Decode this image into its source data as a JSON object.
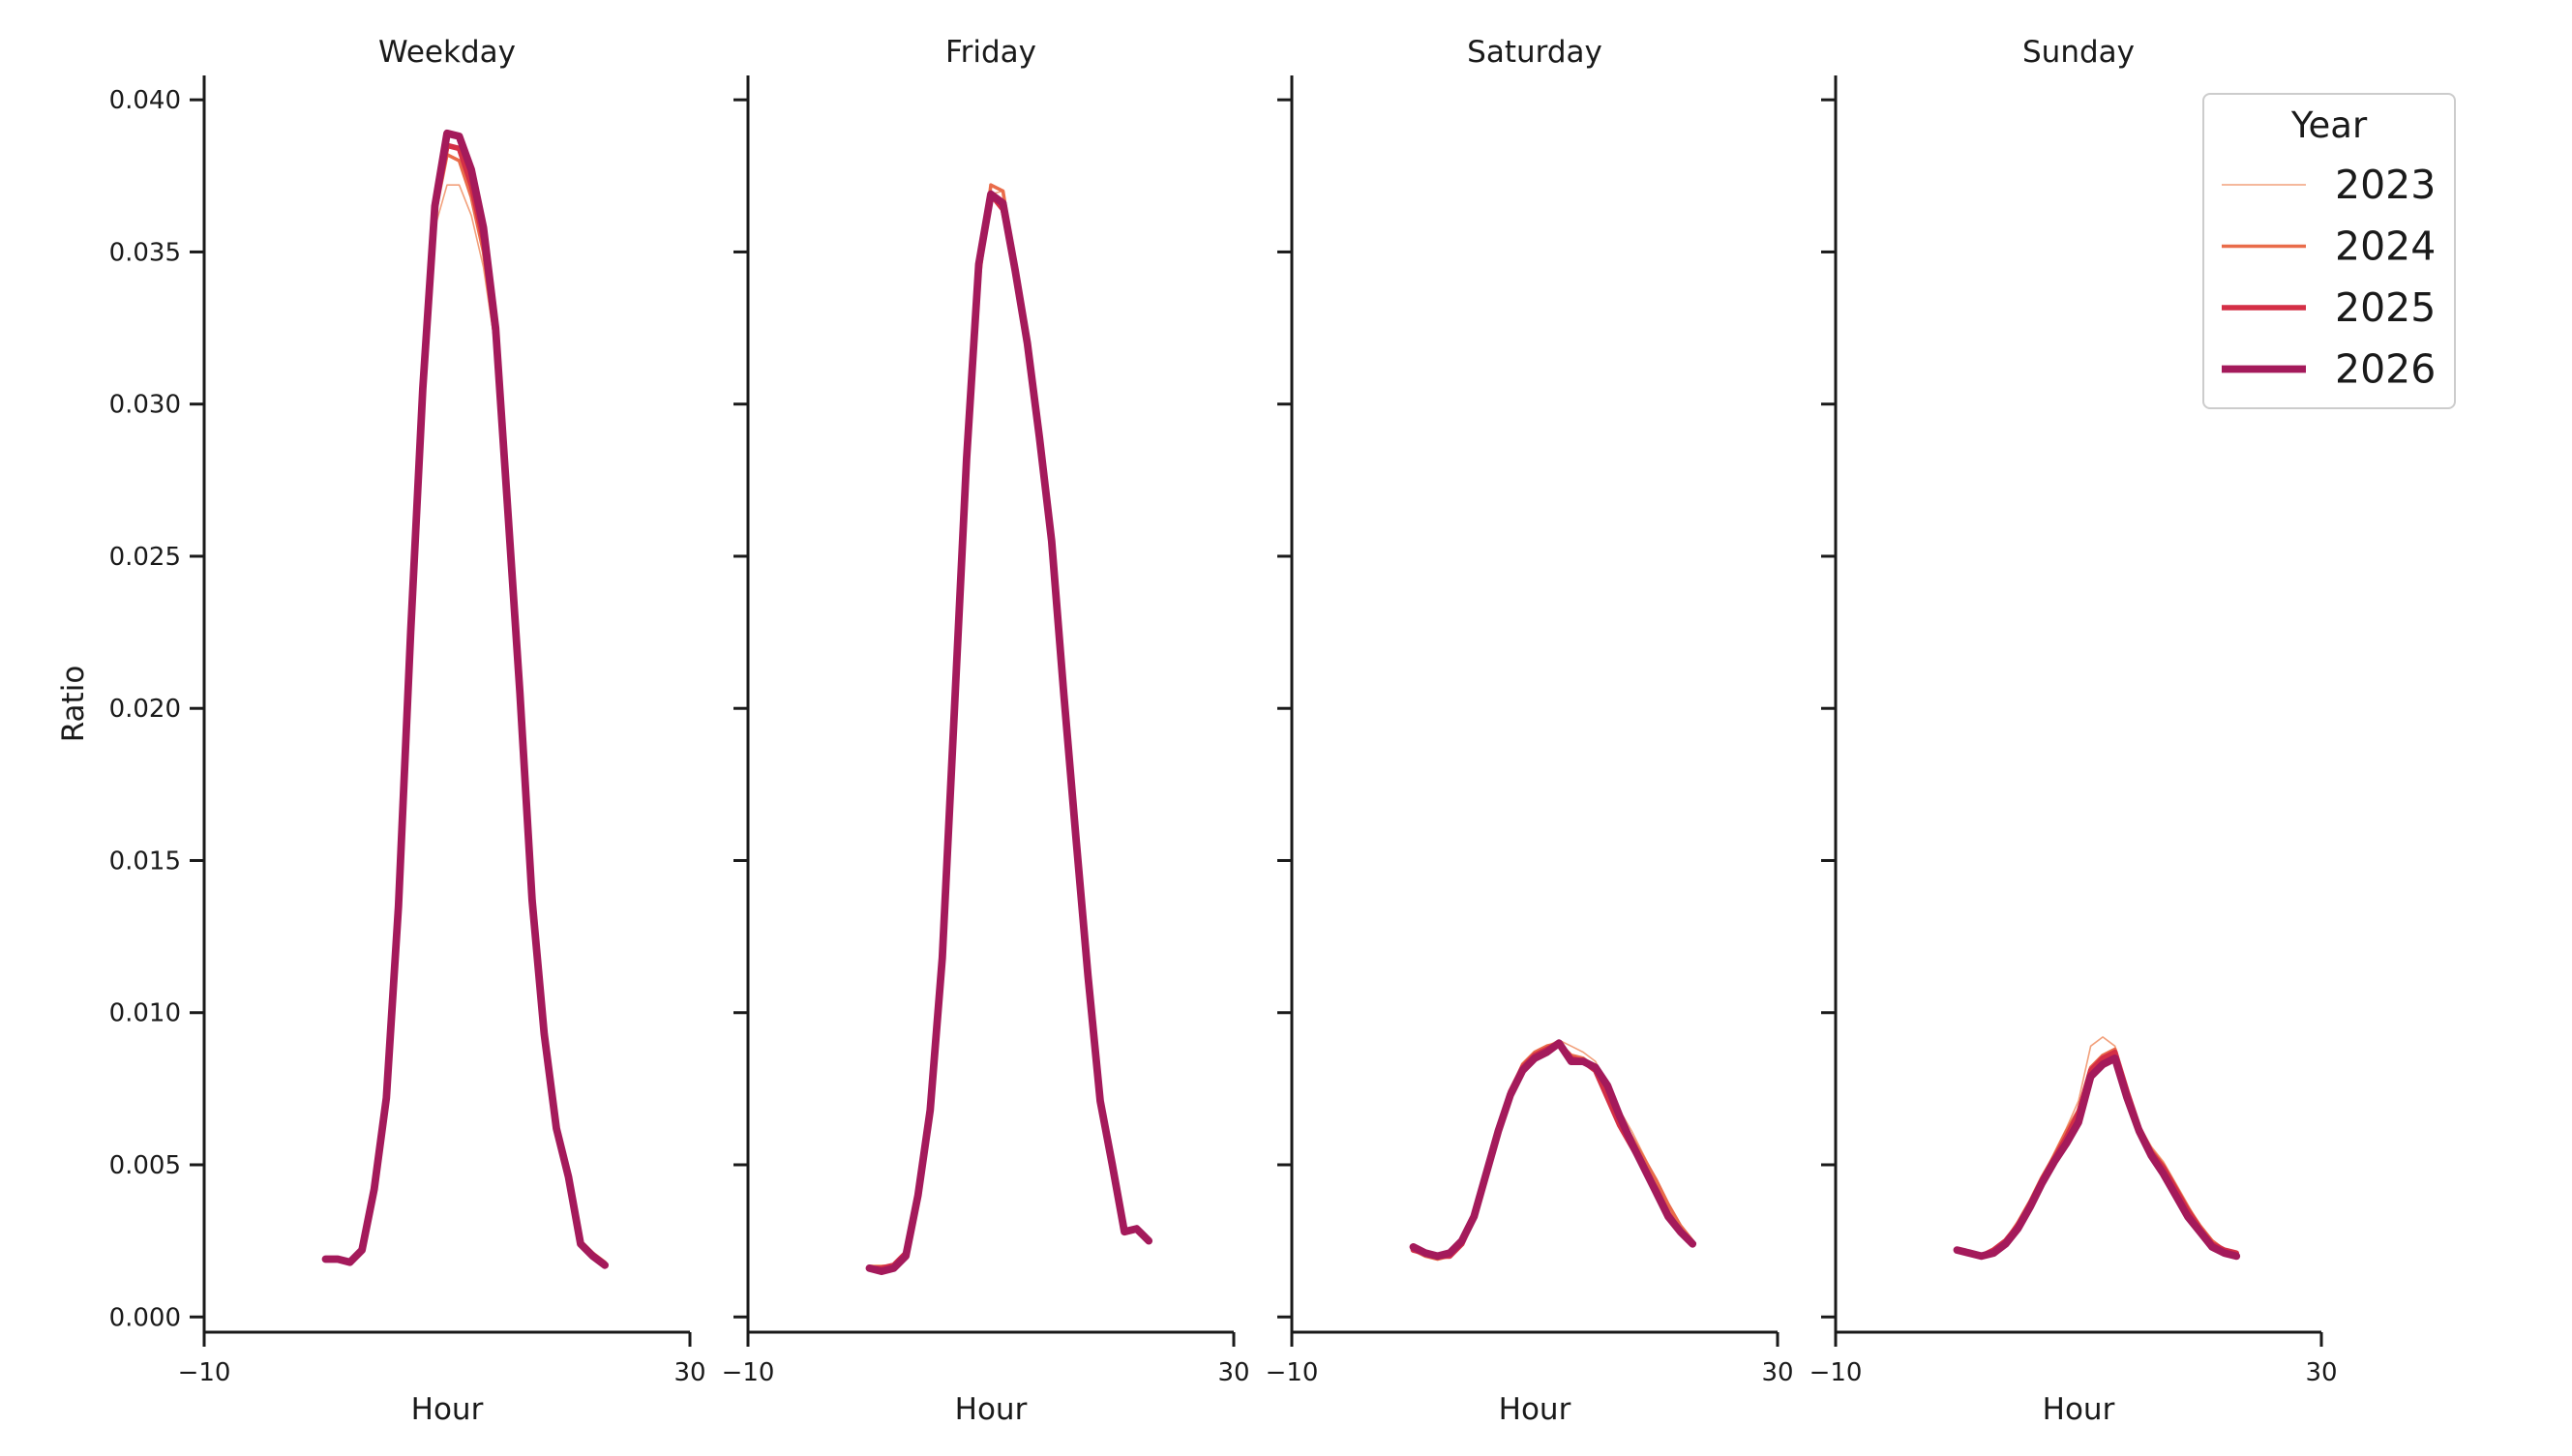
{
  "chart_data": {
    "type": "line",
    "ylabel": "Ratio",
    "xlabel": "Hour",
    "xlim": [
      -10,
      30
    ],
    "ylim": [
      -0.0005,
      0.0408
    ],
    "x_ticks": [
      -10,
      30
    ],
    "x_tick_labels": [
      "−10",
      "30"
    ],
    "y_ticks": [
      0.0,
      0.005,
      0.01,
      0.015,
      0.02,
      0.025,
      0.03,
      0.035,
      0.04
    ],
    "y_tick_labels": [
      "0.000",
      "0.005",
      "0.010",
      "0.015",
      "0.020",
      "0.025",
      "0.030",
      "0.035",
      "0.040"
    ],
    "legend": {
      "title": "Year",
      "placement": "top-right",
      "entries": [
        "2023",
        "2024",
        "2025",
        "2026"
      ]
    },
    "series_styles": [
      {
        "name": "2023",
        "color": "#f2a07b"
      },
      {
        "name": "2024",
        "color": "#e96c4a"
      },
      {
        "name": "2025",
        "color": "#d42f46"
      },
      {
        "name": "2026",
        "color": "#a41a5b"
      }
    ],
    "x": [
      0,
      1,
      2,
      3,
      4,
      5,
      6,
      7,
      8,
      9,
      10,
      11,
      12,
      13,
      14,
      15,
      16,
      17,
      18,
      19,
      20,
      21,
      22,
      23
    ],
    "panels": [
      {
        "title": "Weekday",
        "series": [
          {
            "name": "2023",
            "values": [
              0.0019,
              0.0019,
              0.0018,
              0.0022,
              0.0042,
              0.0072,
              0.0135,
              0.0225,
              0.0305,
              0.0358,
              0.0372,
              0.0372,
              0.0362,
              0.0345,
              0.0318,
              0.0265,
              0.0205,
              0.0137,
              0.0093,
              0.0062,
              0.0046,
              0.0025,
              0.0021,
              0.0018
            ]
          },
          {
            "name": "2024",
            "values": [
              0.0019,
              0.0019,
              0.0018,
              0.0022,
              0.0042,
              0.0072,
              0.0135,
              0.0225,
              0.0305,
              0.0362,
              0.0382,
              0.038,
              0.0368,
              0.035,
              0.032,
              0.0265,
              0.0205,
              0.0137,
              0.0093,
              0.0062,
              0.0046,
              0.0025,
              0.0021,
              0.0018
            ]
          },
          {
            "name": "2025",
            "values": [
              0.0019,
              0.0019,
              0.0018,
              0.0022,
              0.0042,
              0.0072,
              0.0135,
              0.0225,
              0.0305,
              0.0364,
              0.0385,
              0.0384,
              0.0372,
              0.0354,
              0.0322,
              0.0265,
              0.0205,
              0.0137,
              0.0093,
              0.0062,
              0.0046,
              0.0024,
              0.002,
              0.0017
            ]
          },
          {
            "name": "2026",
            "values": [
              0.0019,
              0.0019,
              0.0018,
              0.0022,
              0.0042,
              0.0072,
              0.0135,
              0.0225,
              0.0305,
              0.0365,
              0.0389,
              0.0388,
              0.0377,
              0.0358,
              0.0325,
              0.0265,
              0.0205,
              0.0137,
              0.0093,
              0.0062,
              0.0046,
              0.0024,
              0.002,
              0.0017
            ]
          }
        ]
      },
      {
        "title": "Friday",
        "series": [
          {
            "name": "2023",
            "values": [
              0.0017,
              0.0017,
              0.0017,
              0.0021,
              0.004,
              0.0068,
              0.0118,
              0.02,
              0.0282,
              0.034,
              0.0369,
              0.037,
              0.0345,
              0.032,
              0.0289,
              0.0255,
              0.0205,
              0.0158,
              0.0112,
              0.0071,
              0.005,
              0.0027,
              0.0028,
              0.0025
            ]
          },
          {
            "name": "2024",
            "values": [
              0.0016,
              0.0016,
              0.0017,
              0.0021,
              0.004,
              0.0068,
              0.0118,
              0.02,
              0.0282,
              0.034,
              0.0372,
              0.037,
              0.0345,
              0.032,
              0.0289,
              0.0255,
              0.0205,
              0.0158,
              0.0112,
              0.0071,
              0.005,
              0.0028,
              0.0029,
              0.0025
            ]
          },
          {
            "name": "2025",
            "values": [
              0.0016,
              0.0016,
              0.0017,
              0.0021,
              0.004,
              0.0068,
              0.0118,
              0.02,
              0.0282,
              0.0344,
              0.0369,
              0.0364,
              0.0345,
              0.032,
              0.0289,
              0.0255,
              0.0205,
              0.0158,
              0.0112,
              0.0071,
              0.005,
              0.0028,
              0.0029,
              0.0025
            ]
          },
          {
            "name": "2026",
            "values": [
              0.0016,
              0.0015,
              0.0016,
              0.002,
              0.004,
              0.0068,
              0.0118,
              0.02,
              0.0282,
              0.0346,
              0.0369,
              0.0366,
              0.0344,
              0.032,
              0.0289,
              0.0255,
              0.0205,
              0.0158,
              0.0112,
              0.0071,
              0.005,
              0.0028,
              0.0029,
              0.0025
            ]
          }
        ]
      },
      {
        "title": "Saturday",
        "series": [
          {
            "name": "2023",
            "values": [
              0.0022,
              0.002,
              0.0019,
              0.002,
              0.0024,
              0.0033,
              0.0047,
              0.0061,
              0.0074,
              0.0083,
              0.0087,
              0.0089,
              0.0091,
              0.0089,
              0.0087,
              0.0084,
              0.0076,
              0.0068,
              0.0061,
              0.0053,
              0.0045,
              0.0037,
              0.003,
              0.0025
            ]
          },
          {
            "name": "2024",
            "values": [
              0.0022,
              0.002,
              0.0019,
              0.002,
              0.0024,
              0.0033,
              0.0047,
              0.0061,
              0.0074,
              0.0083,
              0.0087,
              0.0089,
              0.009,
              0.0086,
              0.0085,
              0.0082,
              0.0074,
              0.0066,
              0.0059,
              0.0052,
              0.0045,
              0.0037,
              0.003,
              0.0025
            ]
          },
          {
            "name": "2025",
            "values": [
              0.0022,
              0.0021,
              0.002,
              0.002,
              0.0024,
              0.0033,
              0.0047,
              0.0061,
              0.0074,
              0.0082,
              0.0086,
              0.0088,
              0.009,
              0.0085,
              0.0084,
              0.0081,
              0.0072,
              0.0063,
              0.0056,
              0.0049,
              0.0042,
              0.0034,
              0.0028,
              0.0024
            ]
          },
          {
            "name": "2026",
            "values": [
              0.0023,
              0.0021,
              0.002,
              0.0021,
              0.0025,
              0.0033,
              0.0047,
              0.0061,
              0.0073,
              0.0081,
              0.0085,
              0.0087,
              0.009,
              0.0084,
              0.0084,
              0.0082,
              0.0076,
              0.0066,
              0.0057,
              0.0049,
              0.0041,
              0.0033,
              0.0028,
              0.0024
            ]
          }
        ]
      },
      {
        "title": "Sunday",
        "series": [
          {
            "name": "2023",
            "values": [
              0.0021,
              0.0021,
              0.002,
              0.0022,
              0.0025,
              0.0031,
              0.0038,
              0.0046,
              0.0054,
              0.0062,
              0.0071,
              0.0089,
              0.0092,
              0.0089,
              0.0075,
              0.0063,
              0.0056,
              0.0051,
              0.0044,
              0.0037,
              0.003,
              0.0025,
              0.0022,
              0.0021
            ]
          },
          {
            "name": "2024",
            "values": [
              0.0022,
              0.0021,
              0.002,
              0.0022,
              0.0025,
              0.0031,
              0.0038,
              0.0046,
              0.0053,
              0.0061,
              0.0068,
              0.0082,
              0.0086,
              0.0088,
              0.0074,
              0.0062,
              0.0055,
              0.005,
              0.0043,
              0.0036,
              0.003,
              0.0025,
              0.0022,
              0.0021
            ]
          },
          {
            "name": "2025",
            "values": [
              0.0022,
              0.0021,
              0.002,
              0.0022,
              0.0025,
              0.003,
              0.0037,
              0.0045,
              0.0052,
              0.0059,
              0.0067,
              0.0081,
              0.0085,
              0.0087,
              0.0074,
              0.0062,
              0.0054,
              0.0049,
              0.0042,
              0.0035,
              0.0029,
              0.0024,
              0.0022,
              0.0021
            ]
          },
          {
            "name": "2026",
            "values": [
              0.0022,
              0.0021,
              0.002,
              0.0021,
              0.0024,
              0.0029,
              0.0036,
              0.0044,
              0.0051,
              0.0057,
              0.0064,
              0.0079,
              0.0083,
              0.0085,
              0.0072,
              0.0061,
              0.0053,
              0.0047,
              0.004,
              0.0033,
              0.0028,
              0.0023,
              0.0021,
              0.002
            ]
          }
        ]
      }
    ]
  }
}
